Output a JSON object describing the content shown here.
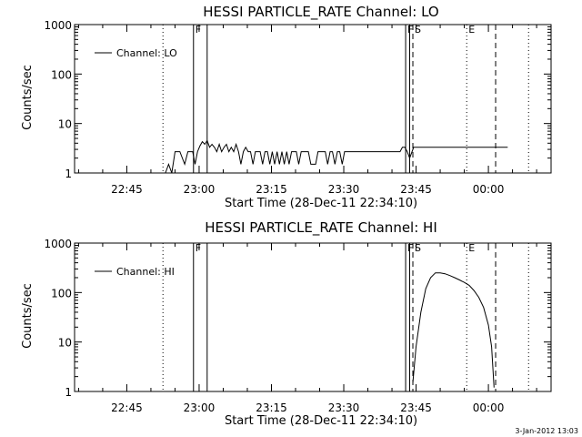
{
  "chart_data": [
    {
      "type": "line",
      "title": "HESSI PARTICLE_RATE Channel: LO",
      "xlabel": "Start Time (28-Dec-11 22:34:10)",
      "ylabel": "Counts/sec",
      "yscale": "log",
      "ylim": [
        1,
        1000
      ],
      "xlim": [
        "22:34:10",
        "00:13:00"
      ],
      "x_ticks": [
        "22:45",
        "23:00",
        "23:15",
        "23:30",
        "23:45",
        "00:00"
      ],
      "y_ticks": [
        "1",
        "10",
        "100",
        "1000"
      ],
      "legend": {
        "position": "upper-left",
        "entries": [
          "Channel: LO"
        ]
      },
      "series": [
        {
          "name": "Channel: LO",
          "x": [
            "22:53:00",
            "22:53:40",
            "22:54:20",
            "22:55:00",
            "22:56:00",
            "22:57:00",
            "22:57:40",
            "22:58:00",
            "22:58:40",
            "22:59:10",
            "22:59:40",
            "23:00:10",
            "23:00:40",
            "23:01:10",
            "23:01:40",
            "23:02:10",
            "23:02:40",
            "23:03:10",
            "23:03:40",
            "23:04:10",
            "23:04:40",
            "23:05:10",
            "23:05:40",
            "23:06:10",
            "23:06:40",
            "23:07:10",
            "23:07:40",
            "23:08:10",
            "23:08:40",
            "23:09:10",
            "23:09:40",
            "23:10:10",
            "23:10:40",
            "23:11:10",
            "23:11:40",
            "23:12:10",
            "23:12:40",
            "23:13:10",
            "23:13:40",
            "23:14:10",
            "23:14:40",
            "23:15:10",
            "23:15:40",
            "23:16:10",
            "23:16:40",
            "23:17:10",
            "23:17:40",
            "23:18:10",
            "23:18:40",
            "23:19:10",
            "23:19:40",
            "23:20:10",
            "23:20:40",
            "23:21:10",
            "23:21:40",
            "23:22:10",
            "23:22:40",
            "23:23:10",
            "23:23:40",
            "23:24:10",
            "23:24:40",
            "23:25:10",
            "23:25:40",
            "23:26:10",
            "23:26:40",
            "23:27:10",
            "23:27:40",
            "23:28:10",
            "23:28:40",
            "23:29:10",
            "23:29:40",
            "23:30:10",
            "23:30:40",
            "23:31:10",
            "23:31:40",
            "23:32:10",
            "23:32:40",
            "23:33:10",
            "23:33:40",
            "23:34:10",
            "23:34:40",
            "23:35:10",
            "23:35:40",
            "23:36:10",
            "23:36:40",
            "23:37:10",
            "23:37:40",
            "23:38:10",
            "23:38:40",
            "23:39:10",
            "23:39:40",
            "23:40:10",
            "23:40:40",
            "23:41:10",
            "23:41:40",
            "23:42:10",
            "23:42:40",
            "23:43:10",
            "23:43:40",
            "23:44:30",
            "23:45:30",
            "23:46:30",
            "23:47:30",
            "23:48:30",
            "23:49:30",
            "23:50:30",
            "23:51:30",
            "23:52:30",
            "23:53:30",
            "23:54:30",
            "23:55:30",
            "23:56:30",
            "23:57:30",
            "23:58:30",
            "23:59:30",
            "00:00:30",
            "00:01:30",
            "00:02:00",
            "00:02:40",
            "00:03:20",
            "00:04:00"
          ],
          "y": [
            1.0,
            1.5,
            1.0,
            2.7,
            2.7,
            1.5,
            2.7,
            2.7,
            2.7,
            1.5,
            2.7,
            3.5,
            4.3,
            3.8,
            4.5,
            3.3,
            3.8,
            3.3,
            2.7,
            3.8,
            2.7,
            3.3,
            3.8,
            2.7,
            3.3,
            2.7,
            3.8,
            2.7,
            1.5,
            2.7,
            3.3,
            2.7,
            2.7,
            1.5,
            2.7,
            2.7,
            2.7,
            1.5,
            2.7,
            2.7,
            1.5,
            2.7,
            1.5,
            2.7,
            1.5,
            2.7,
            1.5,
            2.7,
            1.5,
            2.7,
            2.7,
            2.7,
            1.5,
            2.7,
            2.7,
            2.7,
            2.7,
            1.5,
            1.5,
            1.5,
            2.7,
            2.7,
            2.7,
            2.7,
            1.5,
            2.7,
            2.7,
            1.5,
            2.7,
            2.7,
            1.5,
            2.7,
            2.7,
            2.7,
            2.7,
            2.7,
            2.7,
            2.7,
            2.7,
            2.7,
            2.7,
            2.7,
            2.7,
            2.7,
            2.7,
            2.7,
            2.7,
            2.7,
            2.7,
            2.7,
            2.7,
            2.7,
            2.7,
            2.7,
            2.7,
            3.3,
            3.3,
            2.7,
            2.0,
            3.3,
            3.3,
            3.3,
            3.3,
            3.3,
            3.3,
            3.3,
            3.3,
            3.3,
            3.3,
            3.3,
            3.3,
            3.3,
            3.3,
            3.3,
            3.3,
            3.3,
            3.3,
            3.3,
            3.3,
            3.3,
            3.3
          ]
        }
      ],
      "vertical_markers": [
        {
          "time": "22:52:30",
          "style": "dotted"
        },
        {
          "time": "22:58:50",
          "style": "solid",
          "label": "F"
        },
        {
          "time": "23:01:40",
          "style": "solid"
        },
        {
          "time": "23:42:50",
          "style": "solid",
          "label": "F"
        },
        {
          "time": "23:43:40",
          "style": "solid"
        },
        {
          "time": "23:44:20",
          "style": "dashed",
          "label": "S"
        },
        {
          "time": "23:55:30",
          "style": "dotted",
          "label": "E"
        },
        {
          "time": "00:01:30",
          "style": "dashed"
        },
        {
          "time": "00:08:20",
          "style": "dotted"
        }
      ]
    },
    {
      "type": "line",
      "title": "HESSI PARTICLE_RATE Channel: HI",
      "xlabel": "Start Time (28-Dec-11 22:34:10)",
      "ylabel": "Counts/sec",
      "yscale": "log",
      "ylim": [
        1,
        1000
      ],
      "xlim": [
        "22:34:10",
        "00:13:00"
      ],
      "x_ticks": [
        "22:45",
        "23:00",
        "23:15",
        "23:30",
        "23:45",
        "00:00"
      ],
      "y_ticks": [
        "1",
        "10",
        "100",
        "1000"
      ],
      "legend": {
        "position": "upper-left",
        "entries": [
          "Channel: HI"
        ]
      },
      "series": [
        {
          "name": "Channel: HI",
          "x": [
            "23:44:20",
            "23:45:00",
            "23:46:00",
            "23:47:00",
            "23:48:00",
            "23:49:00",
            "23:50:00",
            "23:51:00",
            "23:52:00",
            "23:53:00",
            "23:54:00",
            "23:55:00",
            "23:56:00",
            "23:57:00",
            "23:58:00",
            "23:59:00",
            "00:00:00",
            "00:00:40",
            "00:01:10"
          ],
          "y": [
            1.5,
            8,
            40,
            120,
            200,
            250,
            250,
            240,
            220,
            200,
            180,
            160,
            140,
            110,
            80,
            50,
            22,
            8,
            1.2
          ]
        }
      ],
      "vertical_markers": [
        {
          "time": "22:52:30",
          "style": "dotted"
        },
        {
          "time": "22:58:50",
          "style": "solid",
          "label": "F"
        },
        {
          "time": "23:01:40",
          "style": "solid"
        },
        {
          "time": "23:42:50",
          "style": "solid",
          "label": "F"
        },
        {
          "time": "23:43:40",
          "style": "solid"
        },
        {
          "time": "23:44:20",
          "style": "dashed",
          "label": "S"
        },
        {
          "time": "23:55:30",
          "style": "dotted",
          "label": "E"
        },
        {
          "time": "00:01:30",
          "style": "dashed"
        },
        {
          "time": "00:08:20",
          "style": "dotted"
        }
      ]
    }
  ],
  "footer": {
    "timestamp": "3-Jan-2012 13:03"
  }
}
